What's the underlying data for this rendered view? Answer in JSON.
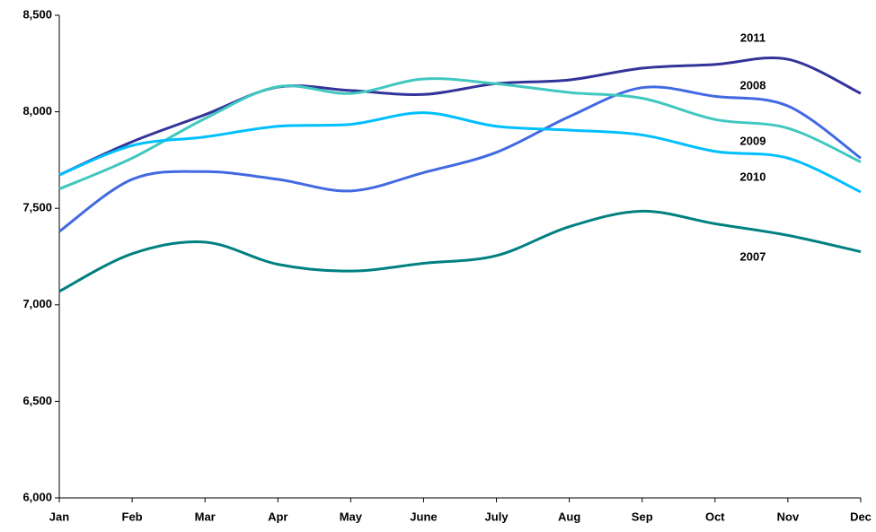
{
  "chart_data": {
    "type": "line",
    "categories": [
      "Jan",
      "Feb",
      "Mar",
      "Apr",
      "May",
      "June",
      "July",
      "Aug",
      "Sep",
      "Oct",
      "Nov",
      "Dec"
    ],
    "ylim": [
      6000,
      8500
    ],
    "yticks": [
      {
        "value": 6000,
        "label": "6,000"
      },
      {
        "value": 6500,
        "label": "6,500"
      },
      {
        "value": 7000,
        "label": "7,000"
      },
      {
        "value": 7500,
        "label": "7,500"
      },
      {
        "value": 8000,
        "label": "8,000"
      },
      {
        "value": 8500,
        "label": "8,500"
      }
    ],
    "grid": false,
    "series": [
      {
        "name": "2011",
        "color": "#333399",
        "values": [
          7673,
          7845,
          7985,
          8128,
          8110,
          8090,
          8146,
          8165,
          8226,
          8245,
          8272,
          8095
        ]
      },
      {
        "name": "2008",
        "color": "#4169e1",
        "values": [
          7380,
          7650,
          7690,
          7650,
          7590,
          7685,
          7790,
          7975,
          8125,
          8080,
          8030,
          7760
        ]
      },
      {
        "name": "2009",
        "color": "#40c8c0",
        "values": [
          7600,
          7760,
          7965,
          8130,
          8095,
          8170,
          8145,
          8100,
          8070,
          7960,
          7915,
          7740
        ]
      },
      {
        "name": "2010",
        "color": "#00bfff",
        "values": [
          7673,
          7825,
          7870,
          7925,
          7935,
          7995,
          7925,
          7905,
          7880,
          7795,
          7760,
          7585
        ]
      },
      {
        "name": "2007",
        "color": "#008080",
        "values": [
          7070,
          7265,
          7325,
          7210,
          7175,
          7215,
          7255,
          7405,
          7485,
          7420,
          7360,
          7275
        ]
      }
    ]
  }
}
